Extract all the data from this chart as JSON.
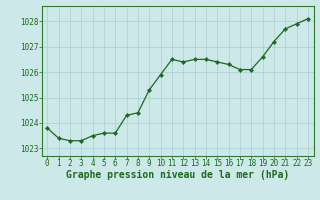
{
  "x": [
    0,
    1,
    2,
    3,
    4,
    5,
    6,
    7,
    8,
    9,
    10,
    11,
    12,
    13,
    14,
    15,
    16,
    17,
    18,
    19,
    20,
    21,
    22,
    23
  ],
  "y": [
    1023.8,
    1023.4,
    1023.3,
    1023.3,
    1023.5,
    1023.6,
    1023.6,
    1024.3,
    1024.4,
    1025.3,
    1025.9,
    1026.5,
    1026.4,
    1026.5,
    1026.5,
    1026.4,
    1026.3,
    1026.1,
    1026.1,
    1026.6,
    1027.2,
    1027.7,
    1027.9,
    1028.1
  ],
  "line_color": "#1a6b1a",
  "marker_color": "#1a6b1a",
  "bg_color": "#cce8e8",
  "grid_color": "#aacfcf",
  "xlabel": "Graphe pression niveau de la mer (hPa)",
  "ylim": [
    1022.7,
    1028.6
  ],
  "yticks": [
    1023,
    1024,
    1025,
    1026,
    1027,
    1028
  ],
  "xticks": [
    0,
    1,
    2,
    3,
    4,
    5,
    6,
    7,
    8,
    9,
    10,
    11,
    12,
    13,
    14,
    15,
    16,
    17,
    18,
    19,
    20,
    21,
    22,
    23
  ],
  "border_color": "#2e7d2e",
  "label_color": "#1a6b1a",
  "font_size_axis": 5.5,
  "font_size_xlabel": 7.0,
  "marker_size": 2.2,
  "line_width": 0.9
}
